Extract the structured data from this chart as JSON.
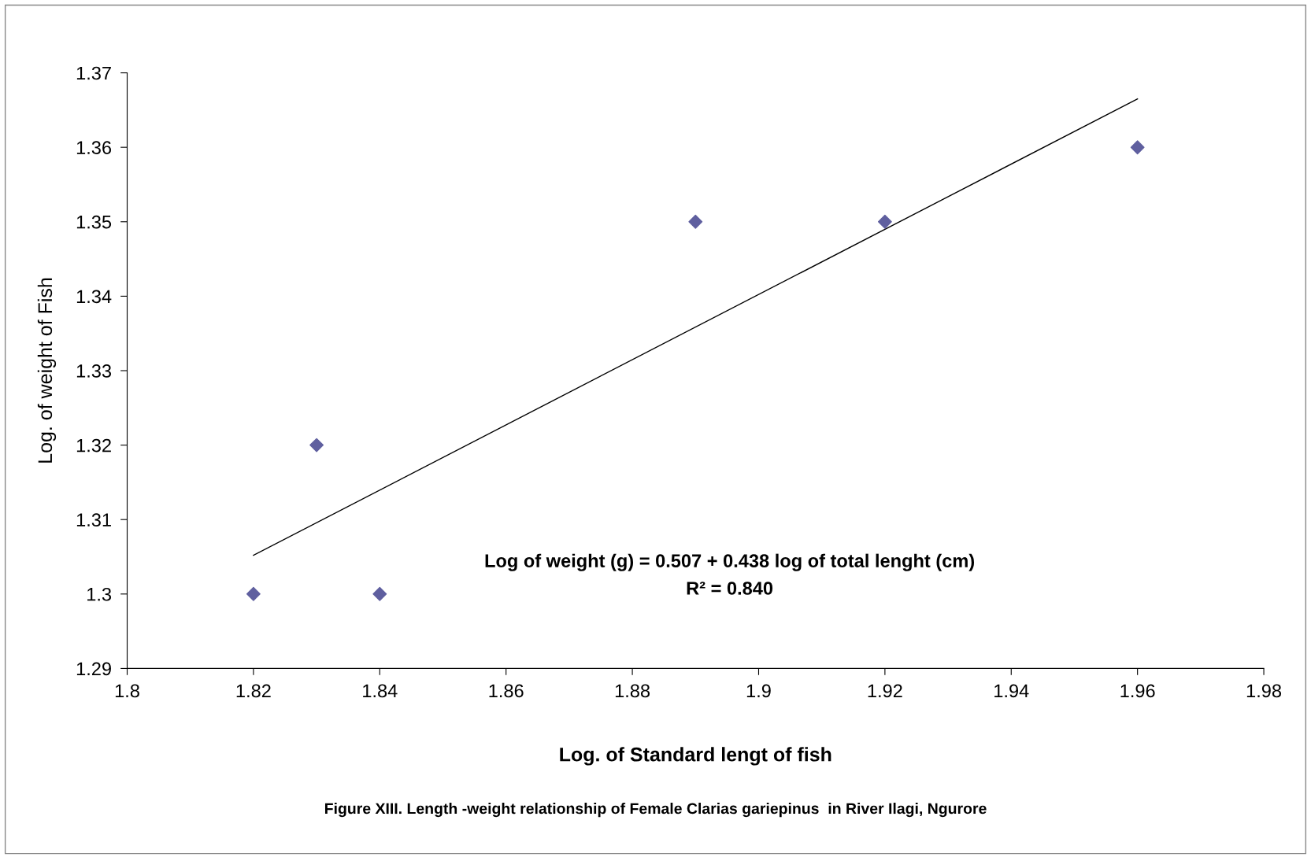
{
  "chart_data": {
    "type": "scatter",
    "xlabel": "Log. of Standard lengt of fish",
    "ylabel": "Log. of weight of Fish",
    "series": [
      {
        "color": "#5f5f9f",
        "marker": "diamond",
        "x": [
          1.82,
          1.83,
          1.84,
          1.89,
          1.92,
          1.96
        ],
        "values": [
          1.3,
          1.32,
          1.3,
          1.35,
          1.35,
          1.36
        ]
      },
      {
        "type": "line",
        "color": "#000000",
        "marker": "none",
        "line_style": "solid",
        "x": [
          1.82,
          1.96
        ],
        "values": [
          1.3052,
          1.3665
        ]
      }
    ],
    "xlim": [
      1.8,
      1.98
    ],
    "xticks": [
      1.8,
      1.82,
      1.84,
      1.86,
      1.88,
      1.9,
      1.92,
      1.94,
      1.96,
      1.98
    ],
    "ylim": [
      1.29,
      1.37
    ],
    "yticks": [
      1.29,
      1.3,
      1.31,
      1.32,
      1.33,
      1.34,
      1.35,
      1.36,
      1.37
    ],
    "grid": false,
    "legend": false,
    "annotations": [
      "Log of weight (g) = 0.507 + 0.438 log of total lenght (cm)",
      "R² = 0.840",
      "Figure XIII. Length -weight relationship of Female Clarias gariepinus  in River Ilagi, Ngurore"
    ]
  }
}
